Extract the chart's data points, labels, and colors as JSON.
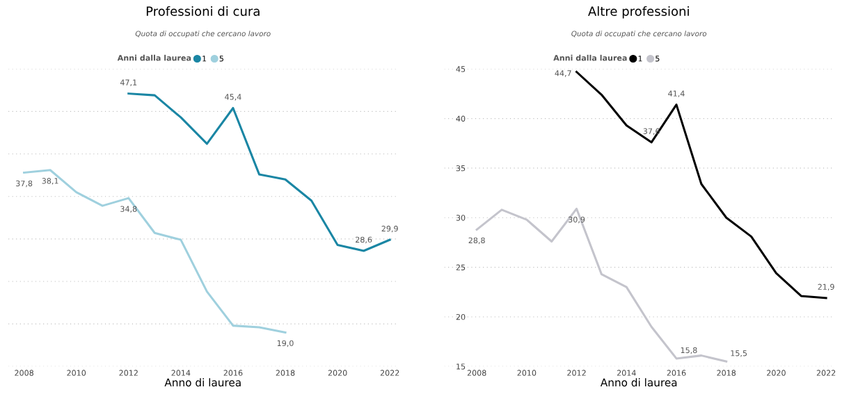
{
  "chart_data": [
    {
      "type": "line",
      "title": "Professioni di cura",
      "subtitle": "Quota di occupati che cercano lavoro",
      "xlabel": "Anno di laurea",
      "legend_title": "Anni dalla laurea",
      "legend": "top",
      "grid": "y",
      "tick_labels": "x",
      "xlim": [
        2007.4,
        2022.3
      ],
      "xticks": [
        2008,
        2010,
        2012,
        2014,
        2016,
        2018,
        2020,
        2022
      ],
      "ylim": [
        15,
        50
      ],
      "yticks": [
        {
          "value": 15,
          "label": null
        },
        {
          "value": 20,
          "label": null
        },
        {
          "value": 25,
          "label": null
        },
        {
          "value": 30,
          "label": null
        },
        {
          "value": 35,
          "label": null
        },
        {
          "value": 40,
          "label": null
        },
        {
          "value": 45,
          "label": null
        },
        {
          "value": 50,
          "label": null
        }
      ],
      "series": [
        {
          "name": "1",
          "color": "#1a86a4",
          "x": [
            2012,
            2013,
            2014,
            2015,
            2016,
            2017,
            2018,
            2019,
            2020,
            2021,
            2022
          ],
          "values": [
            47.1,
            46.9,
            44.3,
            41.2,
            45.4,
            37.6,
            37.0,
            34.5,
            29.3,
            28.6,
            29.9
          ],
          "value_labels": [
            "47,1",
            null,
            null,
            null,
            "45,4",
            null,
            null,
            null,
            null,
            "28,6",
            "29,9"
          ]
        },
        {
          "name": "5",
          "color": "#9fd0de",
          "x": [
            2008,
            2009,
            2010,
            2011,
            2012,
            2013,
            2014,
            2015,
            2016,
            2017,
            2018
          ],
          "values": [
            37.8,
            38.1,
            35.5,
            33.9,
            34.8,
            30.7,
            29.9,
            23.8,
            19.8,
            19.6,
            19.0
          ],
          "value_labels": [
            "37,8",
            "38,1",
            null,
            null,
            "34,8",
            null,
            null,
            null,
            null,
            null,
            "19,0"
          ]
        }
      ]
    },
    {
      "type": "line",
      "title": "Altre professioni",
      "subtitle": "Quota di occupati che cercano lavoro",
      "xlabel": "Anno di laurea",
      "legend_title": "Anni dalla laurea",
      "legend": "top",
      "grid": "y",
      "xlim": [
        2006.7,
        2022.3
      ],
      "xticks": [
        2008,
        2010,
        2012,
        2014,
        2016,
        2018,
        2020,
        2022
      ],
      "ylim": [
        15,
        45
      ],
      "yticks": [
        15,
        20,
        25,
        30,
        35,
        40,
        45
      ],
      "series": [
        {
          "name": "1",
          "color": "#000000",
          "x": [
            2012,
            2013,
            2014,
            2015,
            2016,
            2017,
            2018,
            2019,
            2020,
            2021,
            2022
          ],
          "values": [
            44.7,
            42.4,
            39.3,
            37.6,
            41.4,
            33.4,
            30.0,
            28.1,
            24.4,
            22.1,
            21.9
          ],
          "value_labels": [
            "44,7",
            null,
            null,
            "37,6",
            "41,4",
            null,
            null,
            null,
            null,
            null,
            "21,9"
          ]
        },
        {
          "name": "5",
          "color": "#c4c4cc",
          "x": [
            2008,
            2009,
            2010,
            2011,
            2012,
            2013,
            2014,
            2015,
            2016,
            2017,
            2018
          ],
          "values": [
            28.8,
            30.8,
            29.8,
            27.6,
            30.9,
            24.3,
            23.0,
            19.0,
            15.8,
            16.1,
            15.5
          ],
          "value_labels": [
            "28,8",
            null,
            null,
            null,
            "30,9",
            null,
            null,
            null,
            "15,8",
            null,
            "15,5"
          ]
        }
      ]
    }
  ]
}
